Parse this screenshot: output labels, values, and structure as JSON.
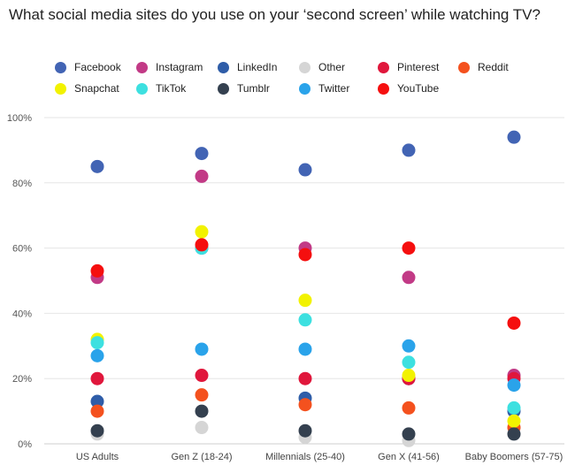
{
  "chart_data": {
    "type": "scatter",
    "title": "What social media sites do you use on your ‘second screen’ while watching TV?",
    "categories": [
      "US Adults",
      "Gen Z (18-24)",
      "Millennials (25-40)",
      "Gen X (41-56)",
      "Baby Boomers (57-75)"
    ],
    "y_ticks": [
      "0%",
      "20%",
      "40%",
      "60%",
      "80%",
      "100%"
    ],
    "ylim": [
      0,
      100
    ],
    "grid": true,
    "legend_position": "top",
    "series": [
      {
        "name": "Facebook",
        "color": "#4264b4",
        "values": [
          85,
          89,
          84,
          90,
          94
        ]
      },
      {
        "name": "Instagram",
        "color": "#c23a86",
        "values": [
          51,
          82,
          60,
          51,
          21
        ]
      },
      {
        "name": "LinkedIn",
        "color": "#2f5da8",
        "values": [
          13,
          60,
          14,
          20,
          10
        ]
      },
      {
        "name": "Other",
        "color": "#d5d5d5",
        "values": [
          3,
          5,
          2,
          1,
          5
        ]
      },
      {
        "name": "Pinterest",
        "color": "#e0173c",
        "values": [
          20,
          21,
          20,
          20,
          20
        ]
      },
      {
        "name": "Reddit",
        "color": "#f4511e",
        "values": [
          10,
          15,
          12,
          11,
          5
        ]
      },
      {
        "name": "Snapchat",
        "color": "#f2f200",
        "values": [
          32,
          65,
          44,
          21,
          7
        ]
      },
      {
        "name": "TikTok",
        "color": "#3de0e0",
        "values": [
          31,
          60,
          38,
          25,
          11
        ]
      },
      {
        "name": "Tumblr",
        "color": "#34404f",
        "values": [
          4,
          10,
          4,
          3,
          3
        ]
      },
      {
        "name": "Twitter",
        "color": "#2aa3ea",
        "values": [
          27,
          29,
          29,
          30,
          18
        ]
      },
      {
        "name": "YouTube",
        "color": "#f50f0f",
        "values": [
          53,
          61,
          58,
          60,
          37
        ]
      }
    ]
  }
}
